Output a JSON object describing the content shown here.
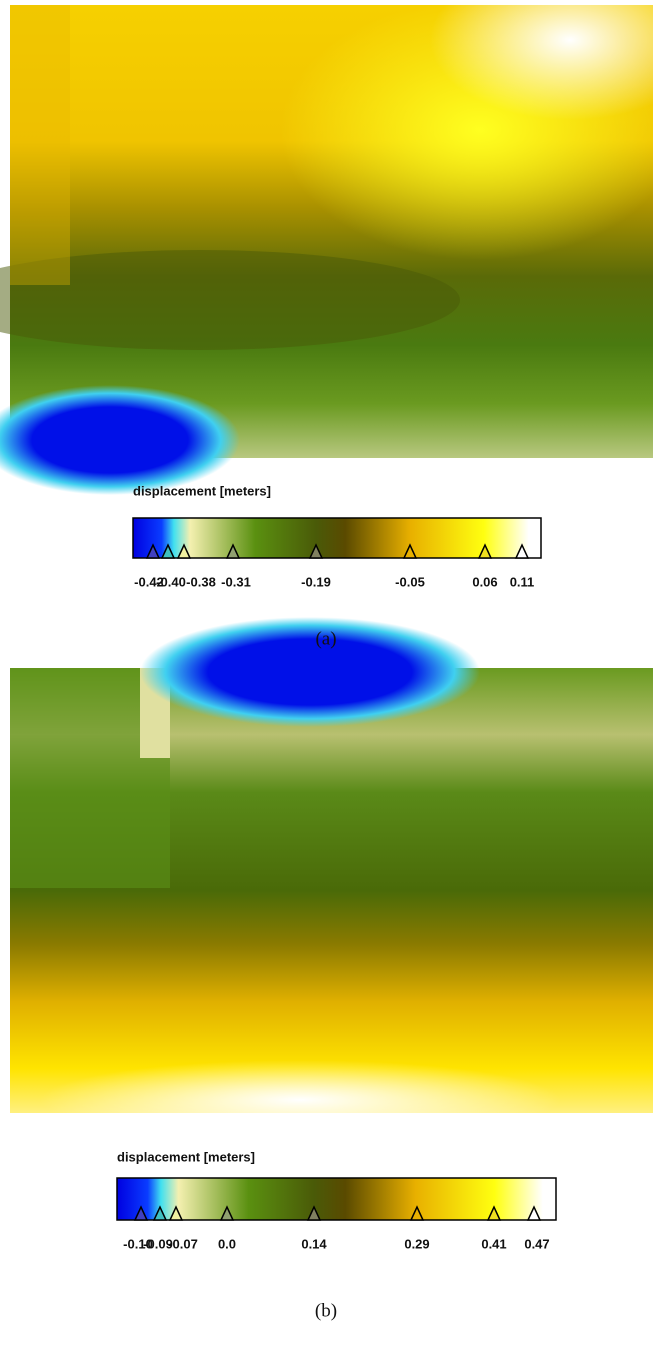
{
  "panels": [
    {
      "legend_title": "displacement [meters]",
      "ticks": [
        "-0.42",
        "-0.40",
        "-0.38",
        "-0.31",
        "-0.19",
        "-0.05",
        "0.06",
        "0.11"
      ],
      "caption": "(a)"
    },
    {
      "legend_title": "displacement [meters]",
      "ticks": [
        "-0.10",
        "-0.09",
        "-0.07",
        "0.0",
        "0.14",
        "0.29",
        "0.41",
        "0.47"
      ],
      "caption": "(b)"
    }
  ]
}
